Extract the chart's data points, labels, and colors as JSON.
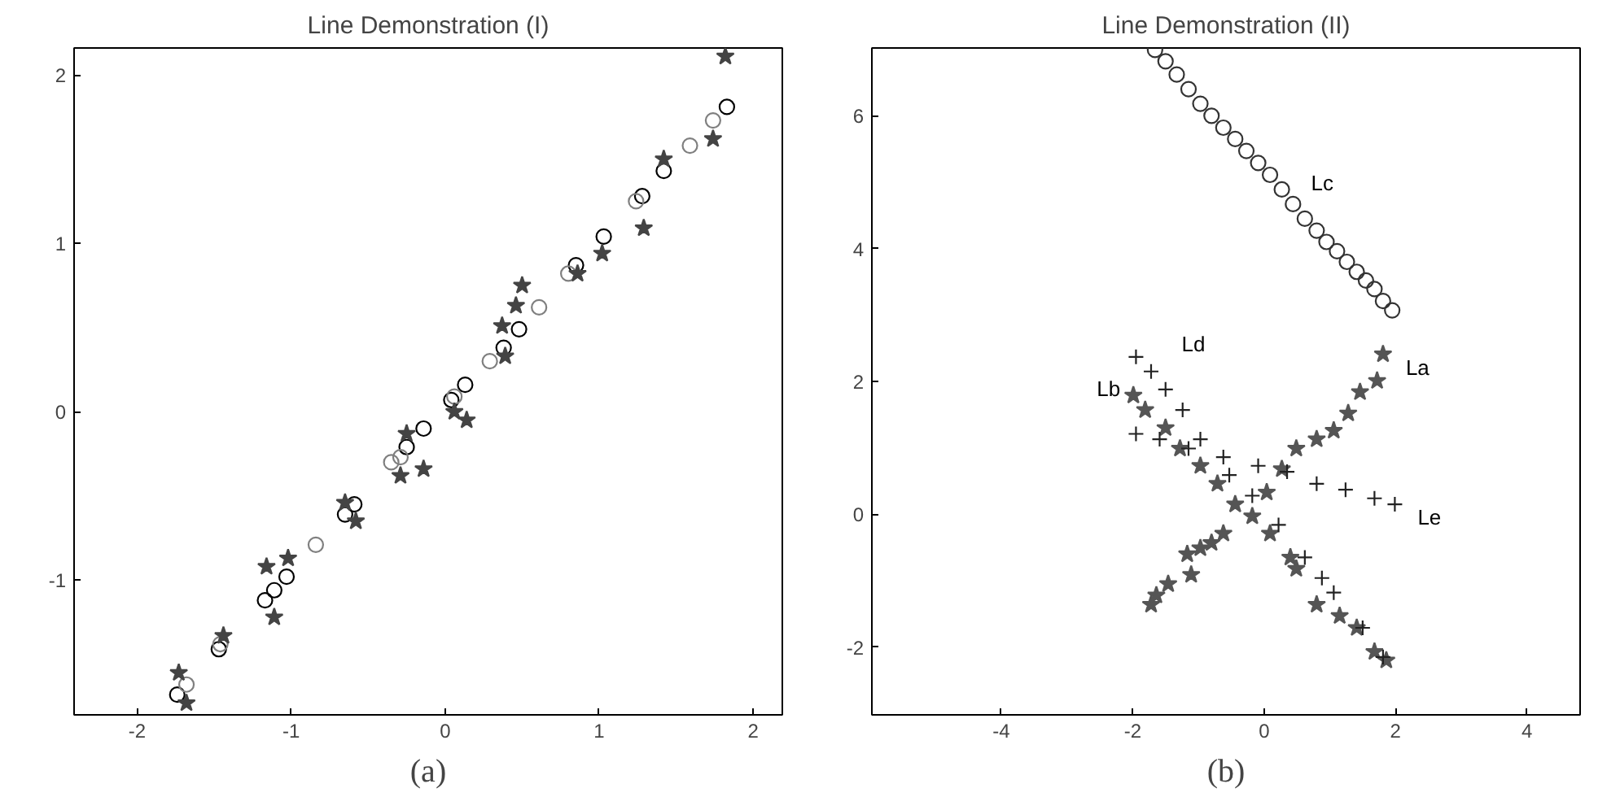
{
  "chart_data": [
    {
      "type": "scatter",
      "title": "Line Demonstration (I)",
      "annotations": [
        "(a)"
      ],
      "xlim": [
        -2.41,
        2.19
      ],
      "ylim": [
        -1.8,
        2.16
      ],
      "xticks": [
        -2,
        -1,
        0,
        1,
        2
      ],
      "yticks": [
        -1,
        0,
        1,
        2
      ],
      "series": [
        {
          "marker": "circle",
          "color": "#000000",
          "x": [
            -1.74,
            -1.47,
            -1.17,
            -1.11,
            -1.03,
            -0.65,
            -0.59,
            -0.25,
            -0.14,
            0.04,
            0.13,
            0.38,
            0.48,
            0.85,
            1.03,
            1.28,
            1.42,
            1.83
          ],
          "values": [
            -1.68,
            -1.41,
            -1.12,
            -1.06,
            -0.98,
            -0.61,
            -0.55,
            -0.21,
            -0.1,
            0.07,
            0.16,
            0.38,
            0.49,
            0.87,
            1.04,
            1.28,
            1.43,
            1.81
          ]
        },
        {
          "marker": "circle",
          "color": "#7f7f7f",
          "x": [
            -1.68,
            -1.46,
            -0.84,
            -0.35,
            -0.29,
            0.06,
            0.29,
            0.61,
            0.8,
            1.24,
            1.59,
            1.74
          ],
          "values": [
            -1.62,
            -1.38,
            -0.79,
            -0.3,
            -0.27,
            0.09,
            0.3,
            0.62,
            0.82,
            1.25,
            1.58,
            1.73
          ]
        },
        {
          "marker": "star",
          "color": "#444444",
          "x": [
            -1.73,
            -1.68,
            -1.44,
            -1.16,
            -1.11,
            -1.02,
            -0.65,
            -0.58,
            -0.25,
            -0.29,
            -0.14,
            0.06,
            0.14,
            0.37,
            0.39,
            0.46,
            0.5,
            0.86,
            1.02,
            1.29,
            1.42,
            1.74,
            1.82
          ],
          "values": [
            -1.55,
            -1.73,
            -1.33,
            -0.92,
            -1.22,
            -0.87,
            -0.54,
            -0.65,
            -0.13,
            -0.38,
            -0.34,
            0.0,
            -0.05,
            0.51,
            0.33,
            0.63,
            0.75,
            0.82,
            0.94,
            1.09,
            1.5,
            1.62,
            2.11
          ]
        }
      ]
    },
    {
      "type": "scatter",
      "title": "Line Demonstration (II)",
      "annotations": [
        "(b)"
      ],
      "xlim": [
        -5.97,
        4.81
      ],
      "ylim": [
        -3.02,
        7.02
      ],
      "xticks": [
        -4,
        -2,
        0,
        2,
        4
      ],
      "yticks": [
        -2,
        0,
        2,
        4,
        6
      ],
      "series": [
        {
          "name": "Lc",
          "marker": "circle",
          "color": "#333333",
          "x": [
            -1.66,
            -1.5,
            -1.33,
            -1.15,
            -0.97,
            -0.8,
            -0.62,
            -0.44,
            -0.27,
            -0.09,
            0.09,
            0.27,
            0.44,
            0.62,
            0.8,
            0.95,
            1.11,
            1.26,
            1.41,
            1.55,
            1.68,
            1.81,
            1.95
          ],
          "values": [
            6.99,
            6.82,
            6.62,
            6.4,
            6.18,
            6.0,
            5.82,
            5.65,
            5.47,
            5.29,
            5.11,
            4.89,
            4.67,
            4.45,
            4.27,
            4.1,
            3.96,
            3.8,
            3.65,
            3.52,
            3.39,
            3.21,
            3.07
          ]
        },
        {
          "name": "La",
          "marker": "star",
          "color": "#555555",
          "x": [
            -1.72,
            -1.64,
            -1.46,
            -1.11,
            -1.17,
            -0.97,
            -0.8,
            -0.62,
            0.04,
            0.27,
            0.49,
            0.8,
            1.06,
            1.28,
            1.46,
            1.72,
            1.81
          ],
          "values": [
            -1.36,
            -1.22,
            -1.05,
            -0.91,
            -0.6,
            -0.51,
            -0.43,
            -0.29,
            0.33,
            0.68,
            0.99,
            1.13,
            1.26,
            1.52,
            1.84,
            2.01,
            2.41
          ]
        },
        {
          "name": "Lb",
          "marker": "star",
          "color": "#555555",
          "x": [
            -1.99,
            -1.81,
            -1.5,
            -1.28,
            -0.97,
            -0.71,
            -0.44,
            -0.18,
            0.09,
            0.4,
            0.49,
            0.8,
            1.15,
            1.41,
            1.68,
            1.86
          ],
          "values": [
            1.79,
            1.57,
            1.3,
            0.99,
            0.73,
            0.46,
            0.15,
            -0.03,
            -0.29,
            -0.65,
            -0.82,
            -1.36,
            -1.53,
            -1.71,
            -2.07,
            -2.2
          ]
        },
        {
          "name": "Ld",
          "marker": "cross",
          "color": "#222222",
          "x": [
            -1.95,
            -1.72,
            -1.5,
            -1.24,
            -0.97,
            -0.53,
            -0.18,
            0.22,
            0.62,
            0.88,
            1.06,
            1.5,
            1.81
          ],
          "values": [
            2.37,
            2.15,
            1.88,
            1.57,
            1.13,
            0.59,
            0.28,
            -0.16,
            -0.65,
            -0.96,
            -1.18,
            -1.71,
            -2.15
          ]
        },
        {
          "name": "Le",
          "marker": "cross",
          "color": "#222222",
          "x": [
            -1.95,
            -1.59,
            -1.15,
            -0.62,
            -0.09,
            0.35,
            0.8,
            1.24,
            1.68,
            1.99
          ],
          "values": [
            1.21,
            1.13,
            0.99,
            0.86,
            0.73,
            0.64,
            0.46,
            0.37,
            0.24,
            0.15
          ]
        }
      ]
    }
  ]
}
